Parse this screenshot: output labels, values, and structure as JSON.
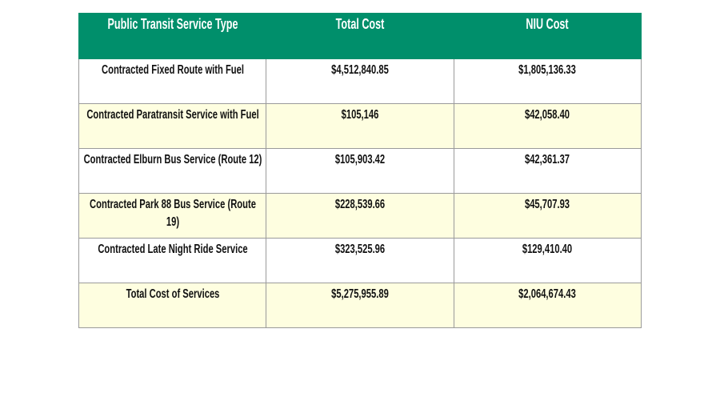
{
  "table": {
    "headers": [
      "Public Transit Service Type",
      "Total Cost",
      "NIU Cost"
    ],
    "rows": [
      [
        "Contracted Fixed Route with Fuel",
        "$4,512,840.85",
        "$1,805,136.33"
      ],
      [
        "Contracted Paratransit Service with Fuel",
        "$105,146",
        "$42,058.40"
      ],
      [
        "Contracted Elburn Bus Service (Route 12)",
        "$105,903.42",
        "$42,361.37"
      ],
      [
        "Contracted Park 88 Bus Service (Route 19)",
        "$228,539.66",
        "$45,707.93"
      ],
      [
        "Contracted Late Night Ride Service",
        "$323,525.96",
        "$129,410.40"
      ],
      [
        "Total Cost of Services",
        "$5,275,955.89",
        "$2,064,674.43"
      ]
    ],
    "colors": {
      "header_bg": "#008f6b",
      "header_text": "#ffffff",
      "alt_row_bg": "#fefee0",
      "row_bg": "#ffffff"
    }
  }
}
